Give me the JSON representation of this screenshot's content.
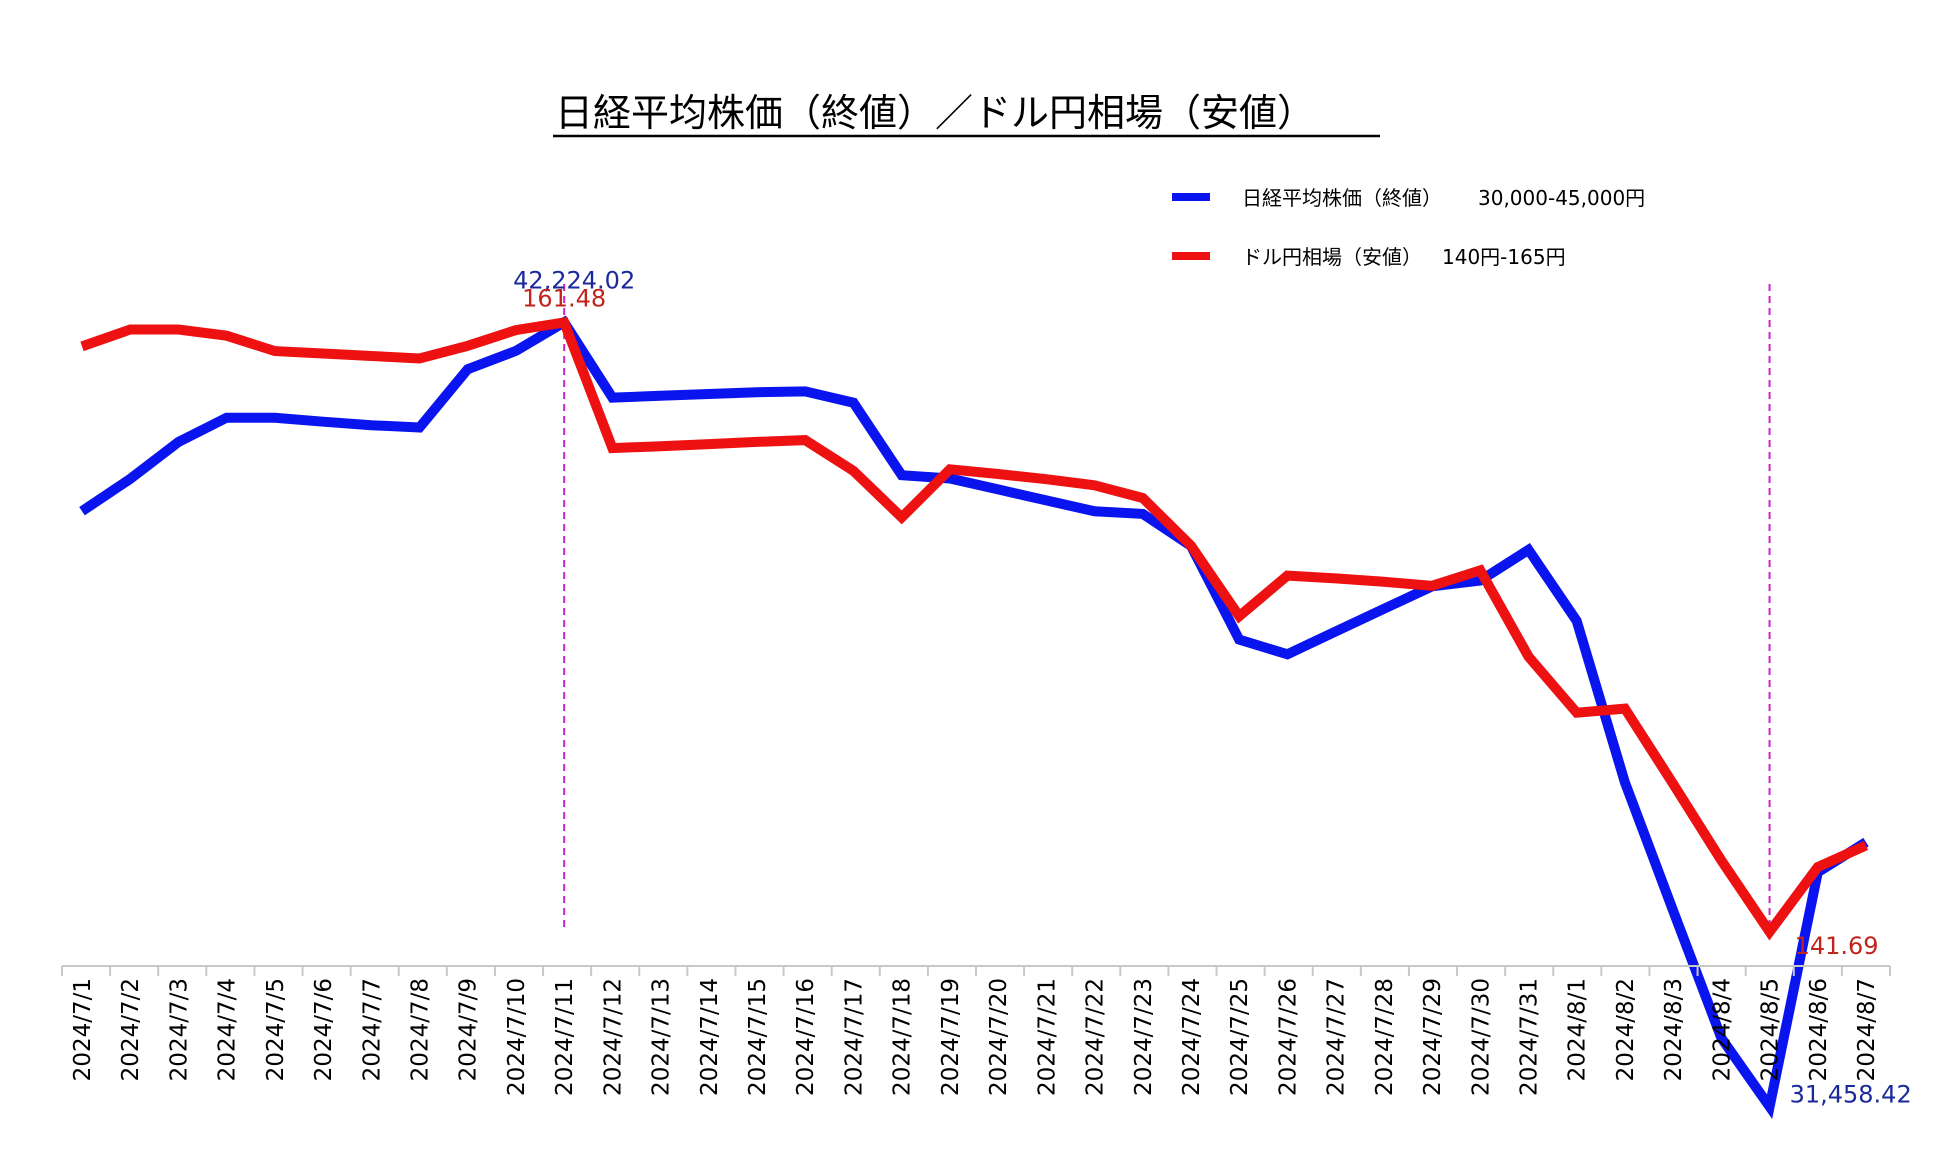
{
  "chart_data": {
    "type": "line",
    "title": "日経平均株価（終値）／ドル円相場（安値）",
    "xlabel": "",
    "ylabel": "",
    "categories": [
      "2024/7/1",
      "2024/7/2",
      "2024/7/3",
      "2024/7/4",
      "2024/7/5",
      "2024/7/6",
      "2024/7/7",
      "2024/7/8",
      "2024/7/9",
      "2024/7/10",
      "2024/7/11",
      "2024/7/12",
      "2024/7/13",
      "2024/7/14",
      "2024/7/15",
      "2024/7/16",
      "2024/7/17",
      "2024/7/18",
      "2024/7/19",
      "2024/7/20",
      "2024/7/21",
      "2024/7/22",
      "2024/7/23",
      "2024/7/24",
      "2024/7/25",
      "2024/7/26",
      "2024/7/27",
      "2024/7/28",
      "2024/7/29",
      "2024/7/30",
      "2024/7/31",
      "2024/8/1",
      "2024/8/2",
      "2024/8/3",
      "2024/8/4",
      "2024/8/5",
      "2024/8/6",
      "2024/8/7"
    ],
    "series": [
      {
        "name": "日経平均株価（終値）",
        "range_label": "30,000-45,000円",
        "ylim": [
          30000,
          45000
        ],
        "color": "#0a14ee",
        "values": [
          39631,
          40074,
          40581,
          40914,
          40913,
          40860,
          40811,
          40780,
          41580,
          41831,
          42224.02,
          41190,
          41215,
          41240,
          41265,
          41275,
          41120,
          40126,
          40080,
          39930,
          39780,
          39630,
          39594,
          39154,
          37869,
          37667,
          37980,
          38290,
          38600,
          38680,
          39102,
          38126,
          35910,
          34150,
          32400,
          31458.42,
          34675,
          35090
        ]
      },
      {
        "name": "ドル円相場（安値）",
        "range_label": "140円-165円",
        "ylim": [
          140,
          165
        ],
        "color": "#ee1111",
        "values": [
          160.7,
          161.25,
          161.25,
          161.05,
          160.55,
          160.47,
          160.39,
          160.31,
          160.72,
          161.23,
          161.48,
          157.4,
          157.46,
          157.53,
          157.6,
          157.66,
          156.66,
          155.15,
          156.71,
          156.56,
          156.39,
          156.19,
          155.78,
          154.23,
          151.94,
          153.26,
          153.17,
          153.06,
          152.93,
          153.43,
          150.63,
          148.81,
          148.94,
          146.5,
          144.01,
          141.69,
          143.8,
          144.5
        ]
      }
    ],
    "annotations": [
      {
        "series": 0,
        "category": "2024/7/11",
        "label": "42,224.02",
        "vline": true
      },
      {
        "series": 1,
        "category": "2024/7/11",
        "label": "161.48"
      },
      {
        "series": 0,
        "category": "2024/8/5",
        "label": "31,458.42",
        "vline": true
      },
      {
        "series": 1,
        "category": "2024/8/5",
        "label": "141.69"
      }
    ],
    "vline_color": "#cc22cc",
    "label_colors": [
      "#1a2a9a",
      "#c0241c"
    ],
    "grid": false,
    "legend_position": "top-right"
  }
}
